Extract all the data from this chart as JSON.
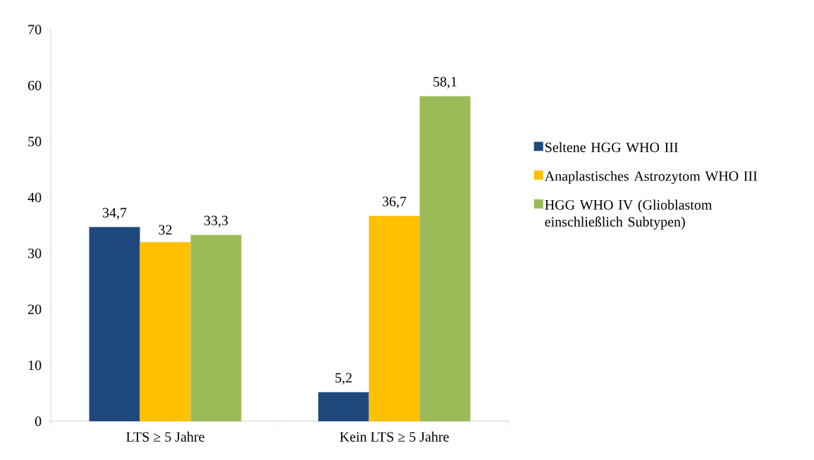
{
  "chart_data": {
    "type": "bar",
    "categories": [
      "LTS ≥ 5 Jahre",
      "Kein LTS ≥ 5 Jahre"
    ],
    "series": [
      {
        "name": "Seltene HGG WHO III",
        "color": "#1f497d",
        "values": [
          34.7,
          5.2
        ],
        "value_labels": [
          "34,7",
          "5,2"
        ]
      },
      {
        "name": "Anaplastisches Astrozytom WHO III",
        "color": "#ffc000",
        "values": [
          32,
          36.7
        ],
        "value_labels": [
          "32",
          "36,7"
        ]
      },
      {
        "name": "HGG WHO IV (Glioblastom einschließlich Subtypen)",
        "color": "#9bbb59",
        "values": [
          33.3,
          58.1
        ],
        "value_labels": [
          "33,3",
          "58,1"
        ]
      }
    ],
    "ylim": [
      0,
      70
    ],
    "yticks": [
      0,
      10,
      20,
      30,
      40,
      50,
      60,
      70
    ],
    "legend": "right"
  }
}
